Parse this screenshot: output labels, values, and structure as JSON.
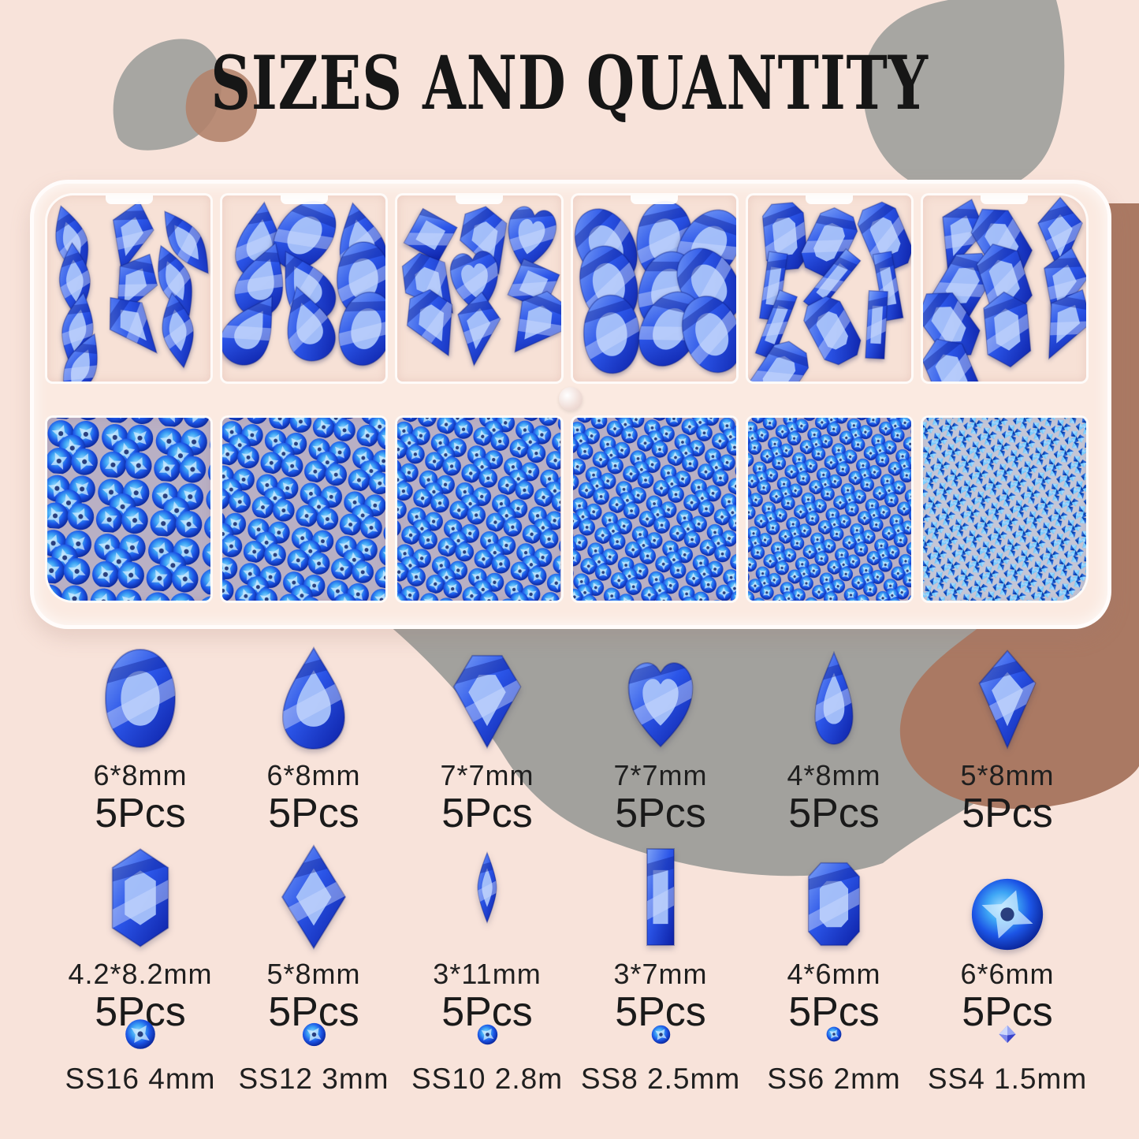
{
  "title": "SIZES AND QUANTITY",
  "palette": {
    "background": "#f8e3da",
    "blob_gray": "#a7a6a2",
    "blob_gray_dark": "#a2a19d",
    "blob_brown": "#aa7963",
    "blob_brown_light": "#b2836c",
    "case_shell": "#fbeae1",
    "cell_pink": "#f7e1d6",
    "gem_light": "#a9c3fa",
    "gem_mid": "#2b55e8",
    "gem_deep": "#0c20a6",
    "gem_pale": "#cfdcfc",
    "gem_edge": "#0a1a7e",
    "round_core": "#9bdcff",
    "round_mid": "#1c55e6",
    "round_deep": "#081f90",
    "chaton_light": "#b8e9ff",
    "chaton_mid": "#1b76e4",
    "label_color": "#1f1f1f"
  },
  "case": {
    "top_compartments": [
      {
        "name": "marquise-kite-gems",
        "shapes": [
          "marquise",
          "kite",
          "marquise",
          "marquise",
          "kite",
          "marquise",
          "marquise",
          "kite",
          "marquise",
          "marquise"
        ]
      },
      {
        "name": "teardrop-oval-gems",
        "shapes": [
          "teardrop",
          "oval",
          "teardrop",
          "teardrop",
          "teardrop",
          "oval",
          "teardrop",
          "teardrop",
          "oval"
        ]
      },
      {
        "name": "diamond-heart-square-gems",
        "shapes": [
          "square",
          "diamond",
          "heart",
          "diamond",
          "heart",
          "square",
          "diamond",
          "kite",
          "diamond"
        ]
      },
      {
        "name": "oval-gems",
        "shapes": [
          "oval",
          "oval",
          "oval",
          "oval",
          "oval",
          "oval",
          "oval",
          "oval",
          "oval"
        ]
      },
      {
        "name": "baguette-octagon-gems",
        "shapes": [
          "octagon",
          "octagon",
          "octagon",
          "baguette",
          "baguette",
          "baguette",
          "baguette",
          "octagon",
          "baguette",
          "octagon"
        ]
      },
      {
        "name": "hexagon-kite-gems",
        "shapes": [
          "kite",
          "hexagon",
          "kite",
          "hexagon",
          "hexagon",
          "kite",
          "hexagon",
          "hexagon",
          "kite",
          "hexagon"
        ]
      }
    ],
    "bottom_compartments": [
      {
        "name": "round-rhinestones-ss16",
        "gem": "round",
        "diameter": 34
      },
      {
        "name": "round-rhinestones-ss12",
        "gem": "round",
        "diameter": 28
      },
      {
        "name": "round-rhinestones-ss10",
        "gem": "round",
        "diameter": 24
      },
      {
        "name": "round-rhinestones-ss8",
        "gem": "round",
        "diameter": 21
      },
      {
        "name": "round-rhinestones-ss6",
        "gem": "round",
        "diameter": 18
      },
      {
        "name": "chaton-rhinestones-ss4",
        "gem": "chaton",
        "diameter": 11
      }
    ]
  },
  "grid": {
    "row1": [
      {
        "shape": "oval",
        "size": "6*8mm",
        "qty": "5Pcs"
      },
      {
        "shape": "teardrop",
        "size": "6*8mm",
        "qty": "5Pcs"
      },
      {
        "shape": "diamond",
        "size": "7*7mm",
        "qty": "5Pcs"
      },
      {
        "shape": "heart",
        "size": "7*7mm",
        "qty": "5Pcs"
      },
      {
        "shape": "pear",
        "size": "4*8mm",
        "qty": "5Pcs"
      },
      {
        "shape": "kite",
        "size": "5*8mm",
        "qty": "5Pcs"
      }
    ],
    "row2": [
      {
        "shape": "hexagon",
        "size": "4.2*8.2mm",
        "qty": "5Pcs"
      },
      {
        "shape": "rhombus",
        "size": "5*8mm",
        "qty": "5Pcs"
      },
      {
        "shape": "navette",
        "size": "3*11mm",
        "qty": "5Pcs"
      },
      {
        "shape": "baguette",
        "size": "3*7mm",
        "qty": "5Pcs"
      },
      {
        "shape": "octagon",
        "size": "4*6mm",
        "qty": "5Pcs"
      },
      {
        "shape": "round",
        "size": "6*6mm",
        "qty": "5Pcs"
      }
    ],
    "row3": [
      {
        "shape": "round",
        "label": "SS16 4mm",
        "d": 40
      },
      {
        "shape": "round",
        "label": "SS12 3mm",
        "d": 31
      },
      {
        "shape": "round",
        "label": "SS10 2.8m",
        "d": 27
      },
      {
        "shape": "round",
        "label": "SS8 2.5mm",
        "d": 25
      },
      {
        "shape": "round",
        "label": "SS6 2mm",
        "d": 20
      },
      {
        "shape": "chaton",
        "label": "SS4 1.5mm",
        "d": 24
      }
    ]
  }
}
